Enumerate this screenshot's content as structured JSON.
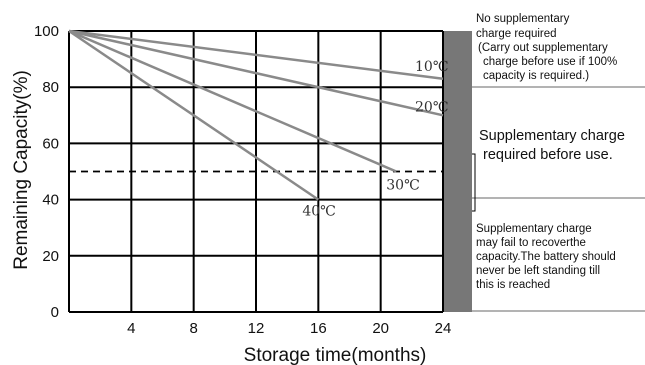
{
  "chart_data": {
    "type": "line",
    "xlabel": "Storage time(months)",
    "ylabel": "Remaining Capacity(%)",
    "xlim": [
      0,
      24
    ],
    "ylim": [
      0,
      100
    ],
    "x_ticks": [
      "4",
      "8",
      "12",
      "16",
      "20",
      "24"
    ],
    "y_ticks": [
      "0",
      "20",
      "40",
      "60",
      "80",
      "100"
    ],
    "grid": true,
    "threshold": 50,
    "series": [
      {
        "name": "10℃",
        "x": [
          0,
          24
        ],
        "y": [
          100,
          83
        ]
      },
      {
        "name": "20℃",
        "x": [
          0,
          24
        ],
        "y": [
          100,
          70
        ]
      },
      {
        "name": "30℃",
        "x": [
          0,
          21
        ],
        "y": [
          100,
          50
        ]
      },
      {
        "name": "40℃",
        "x": [
          0,
          16
        ],
        "y": [
          100,
          40
        ]
      }
    ],
    "line_color": "#8a8a8a",
    "bar_color": "#777777"
  },
  "notes": {
    "top": [
      "No supplementary",
      "charge required",
      "(Carry out supplementary",
      "charge before use if 100%",
      "capacity is required.)"
    ],
    "middle": [
      "Supplementary charge",
      "required before use."
    ],
    "bottom": [
      "Supplementary charge",
      "may fail to recoverthe",
      "capacity.The battery should",
      "never be left standing till",
      "this is reached"
    ]
  }
}
